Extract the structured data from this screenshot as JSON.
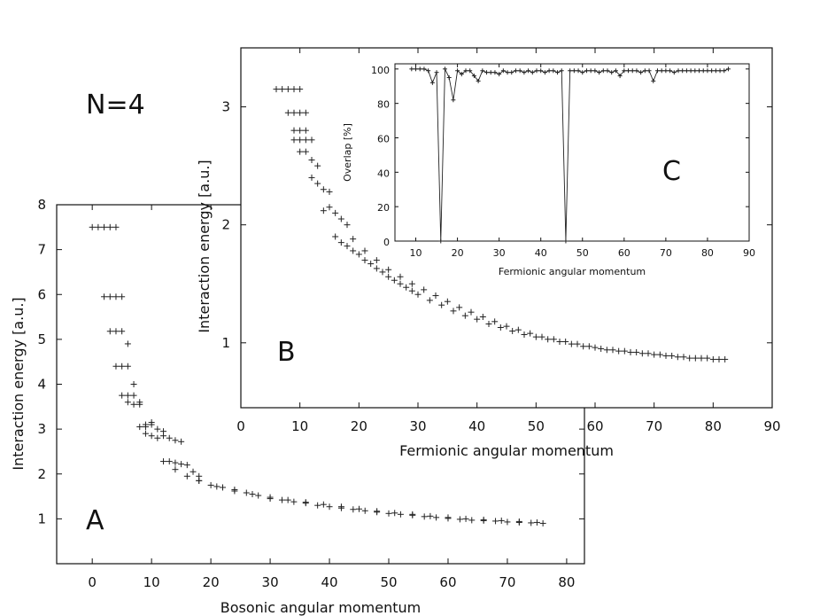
{
  "figure": {
    "annotation": "N=4",
    "panel_labels": [
      "A",
      "B",
      "C"
    ]
  },
  "chart_data": [
    {
      "id": "A",
      "type": "scatter",
      "xlabel": "Bosonic angular momentum",
      "ylabel": "Interaction energy [a.u.]",
      "xlim": [
        -6,
        83
      ],
      "ylim": [
        0,
        8
      ],
      "xticks": [
        0,
        10,
        20,
        30,
        40,
        50,
        60,
        70,
        80
      ],
      "yticks": [
        1,
        2,
        3,
        4,
        5,
        6,
        7,
        8
      ],
      "grid": false,
      "marker": "+",
      "color": "#222222",
      "x": [
        0,
        1,
        2,
        3,
        4,
        2,
        3,
        4,
        5,
        3,
        4,
        5,
        6,
        4,
        5,
        6,
        7,
        5,
        6,
        7,
        8,
        6,
        7,
        8,
        9,
        10,
        8,
        9,
        10,
        11,
        12,
        9,
        10,
        11,
        12,
        13,
        14,
        15,
        12,
        13,
        14,
        15,
        16,
        17,
        18,
        14,
        16,
        18,
        20,
        22,
        24,
        26,
        28,
        30,
        32,
        34,
        36,
        38,
        40,
        42,
        44,
        46,
        48,
        50,
        52,
        54,
        56,
        58,
        60,
        62,
        64,
        66,
        68,
        70,
        72,
        74,
        76,
        18,
        21,
        24,
        27,
        30,
        33,
        36,
        39,
        42,
        45,
        48,
        51,
        54,
        57,
        60,
        63,
        66,
        69,
        72,
        75
      ],
      "y": [
        7.5,
        7.5,
        7.5,
        7.5,
        7.5,
        5.95,
        5.95,
        5.95,
        5.95,
        5.18,
        5.18,
        5.18,
        4.9,
        4.4,
        4.4,
        4.4,
        4.0,
        3.75,
        3.75,
        3.75,
        3.6,
        3.6,
        3.55,
        3.55,
        3.1,
        3.1,
        3.05,
        3.05,
        3.15,
        3.0,
        2.95,
        2.9,
        2.85,
        2.8,
        2.85,
        2.8,
        2.75,
        2.72,
        2.28,
        2.28,
        2.25,
        2.22,
        2.2,
        2.05,
        1.95,
        2.1,
        1.95,
        1.85,
        1.75,
        1.7,
        1.65,
        1.58,
        1.52,
        1.45,
        1.42,
        1.38,
        1.35,
        1.3,
        1.27,
        1.24,
        1.21,
        1.18,
        1.15,
        1.12,
        1.1,
        1.08,
        1.05,
        1.03,
        1.01,
        0.99,
        0.97,
        0.96,
        0.95,
        0.93,
        0.92,
        0.91,
        0.9,
        1.85,
        1.72,
        1.62,
        1.55,
        1.48,
        1.42,
        1.37,
        1.32,
        1.27,
        1.22,
        1.17,
        1.13,
        1.1,
        1.06,
        1.03,
        1.0,
        0.98,
        0.96,
        0.94,
        0.92
      ]
    },
    {
      "id": "B",
      "type": "scatter",
      "xlabel": "Fermionic angular momentum",
      "ylabel": "Interaction energy [a.u.]",
      "xlim": [
        0,
        90
      ],
      "ylim": [
        0.45,
        3.5
      ],
      "xticks": [
        0,
        10,
        20,
        30,
        40,
        50,
        60,
        70,
        80,
        90
      ],
      "yticks": [
        1,
        2,
        3
      ],
      "grid": false,
      "marker": "+",
      "color": "#222222",
      "x": [
        6,
        7,
        8,
        9,
        10,
        8,
        9,
        10,
        11,
        9,
        10,
        11,
        9,
        10,
        11,
        12,
        10,
        11,
        12,
        13,
        12,
        13,
        14,
        15,
        14,
        15,
        16,
        17,
        18,
        16,
        17,
        18,
        19,
        20,
        21,
        22,
        23,
        24,
        25,
        26,
        27,
        28,
        29,
        30,
        32,
        34,
        36,
        38,
        40,
        42,
        44,
        46,
        48,
        50,
        52,
        54,
        56,
        58,
        60,
        62,
        64,
        66,
        68,
        70,
        72,
        74,
        76,
        78,
        80,
        82,
        19,
        21,
        23,
        25,
        27,
        29,
        31,
        33,
        35,
        37,
        39,
        41,
        43,
        45,
        47,
        49,
        51,
        53,
        55,
        57,
        59,
        61,
        63,
        65,
        67,
        69,
        71,
        73,
        75,
        77,
        79,
        81
      ],
      "y": [
        3.15,
        3.15,
        3.15,
        3.15,
        3.15,
        2.95,
        2.95,
        2.95,
        2.95,
        2.8,
        2.8,
        2.8,
        2.72,
        2.72,
        2.72,
        2.72,
        2.62,
        2.62,
        2.55,
        2.5,
        2.4,
        2.35,
        2.3,
        2.28,
        2.12,
        2.15,
        2.1,
        2.05,
        2.0,
        1.9,
        1.85,
        1.82,
        1.78,
        1.75,
        1.7,
        1.67,
        1.63,
        1.6,
        1.56,
        1.53,
        1.5,
        1.47,
        1.44,
        1.41,
        1.36,
        1.32,
        1.27,
        1.23,
        1.2,
        1.16,
        1.13,
        1.1,
        1.07,
        1.05,
        1.03,
        1.01,
        0.99,
        0.97,
        0.96,
        0.94,
        0.93,
        0.92,
        0.91,
        0.9,
        0.89,
        0.88,
        0.87,
        0.87,
        0.86,
        0.86,
        1.88,
        1.78,
        1.7,
        1.62,
        1.56,
        1.5,
        1.45,
        1.4,
        1.35,
        1.3,
        1.26,
        1.22,
        1.18,
        1.14,
        1.11,
        1.08,
        1.05,
        1.03,
        1.01,
        0.99,
        0.97,
        0.95,
        0.94,
        0.93,
        0.92,
        0.91,
        0.9,
        0.89,
        0.88,
        0.87,
        0.87,
        0.86
      ]
    },
    {
      "id": "C",
      "type": "line",
      "xlabel": "Fermionic angular momentum",
      "ylabel": "Overlap [%]",
      "xlim": [
        5,
        90
      ],
      "ylim": [
        0,
        103
      ],
      "xticks": [
        10,
        20,
        30,
        40,
        50,
        60,
        70,
        80,
        90
      ],
      "yticks": [
        0,
        20,
        40,
        60,
        80,
        100
      ],
      "grid": false,
      "marker": "+",
      "color": "#222222",
      "x": [
        9,
        10,
        11,
        12,
        13,
        14,
        15,
        16,
        17,
        18,
        19,
        20,
        21,
        22,
        23,
        24,
        25,
        26,
        27,
        28,
        29,
        30,
        31,
        32,
        33,
        34,
        35,
        36,
        37,
        38,
        39,
        40,
        41,
        42,
        43,
        44,
        45,
        46,
        47,
        48,
        49,
        50,
        51,
        52,
        53,
        54,
        55,
        56,
        57,
        58,
        59,
        60,
        61,
        62,
        63,
        64,
        65,
        66,
        67,
        68,
        69,
        70,
        71,
        72,
        73,
        74,
        75,
        76,
        77,
        78,
        79,
        80,
        81,
        82,
        83,
        84,
        85
      ],
      "y": [
        100,
        100,
        100,
        100,
        99,
        92,
        98,
        0,
        100,
        95,
        82,
        99,
        97,
        99,
        99,
        96,
        93,
        99,
        98,
        98,
        98,
        97,
        99,
        98,
        98,
        99,
        99,
        98,
        99,
        98,
        99,
        99,
        98,
        99,
        99,
        98,
        99,
        0,
        99,
        99,
        99,
        98,
        99,
        99,
        99,
        98,
        99,
        99,
        98,
        99,
        96,
        99,
        99,
        99,
        99,
        98,
        99,
        99,
        93,
        99,
        99,
        99,
        99,
        98,
        99,
        99,
        99,
        99,
        99,
        99,
        99,
        99,
        99,
        99,
        99,
        99,
        100
      ]
    }
  ]
}
